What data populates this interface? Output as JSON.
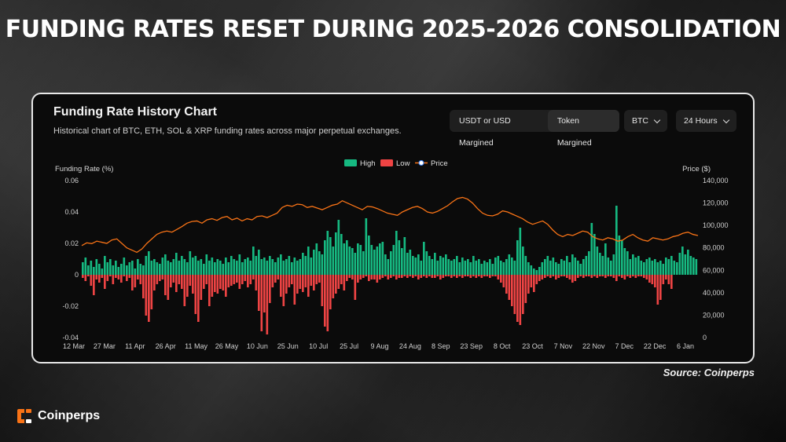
{
  "headline": "FUNDING RATES RESET DURING 2025-2026 CONSOLIDATION",
  "card": {
    "title": "Funding Rate History Chart",
    "subtitle": "Historical chart of BTC, ETH, SOL & XRP funding rates across major perpetual exchanges.",
    "segment_options": [
      "USDT or USD Margined",
      "Token Margined"
    ],
    "symbol_select": "BTC",
    "interval_select": "24 Hours"
  },
  "source": "Source: Coinperps",
  "brand": "Coinperps",
  "colors": {
    "high": "#16b981",
    "low": "#ef4444",
    "price": "#f97316",
    "accent": "#f97316"
  },
  "chart_data": {
    "type": "bar",
    "ylabel": "Funding Rate (%)",
    "y2label": "Price ($)",
    "ylim": [
      -0.04,
      0.06
    ],
    "y2lim": [
      0,
      140000
    ],
    "yticks": [
      "0.06",
      "0.04",
      "0.02",
      "0",
      "-0.02",
      "-0.04"
    ],
    "y2ticks": [
      "140,000",
      "120,000",
      "100,000",
      "80,000",
      "60,000",
      "40,000",
      "20,000",
      "0"
    ],
    "xticks": [
      "12 Mar",
      "27 Mar",
      "11 Apr",
      "26 Apr",
      "11 May",
      "26 May",
      "10 Jun",
      "25 Jun",
      "10 Jul",
      "25 Jul",
      "9 Aug",
      "24 Aug",
      "8 Sep",
      "23 Sep",
      "8 Oct",
      "23 Oct",
      "7 Nov",
      "22 Nov",
      "7 Dec",
      "22 Dec",
      "6 Jan"
    ],
    "legend": [
      "High",
      "Low",
      "Price"
    ],
    "legend_position": "top-center",
    "grid": false,
    "series": [
      {
        "name": "High",
        "values": [
          0.008,
          0.011,
          0.006,
          0.009,
          0.005,
          0.01,
          0.007,
          0.004,
          0.012,
          0.008,
          0.01,
          0.006,
          0.009,
          0.005,
          0.007,
          0.011,
          0.006,
          0.008,
          0.009,
          0.004,
          0.01,
          0.007,
          0.006,
          0.012,
          0.015,
          0.009,
          0.01,
          0.008,
          0.007,
          0.011,
          0.013,
          0.009,
          0.008,
          0.01,
          0.014,
          0.009,
          0.012,
          0.01,
          0.008,
          0.015,
          0.011,
          0.012,
          0.009,
          0.01,
          0.007,
          0.013,
          0.009,
          0.011,
          0.008,
          0.01,
          0.009,
          0.007,
          0.011,
          0.008,
          0.012,
          0.01,
          0.009,
          0.013,
          0.008,
          0.01,
          0.011,
          0.009,
          0.018,
          0.012,
          0.016,
          0.01,
          0.011,
          0.009,
          0.012,
          0.01,
          0.008,
          0.011,
          0.013,
          0.009,
          0.01,
          0.012,
          0.008,
          0.011,
          0.009,
          0.01,
          0.014,
          0.012,
          0.018,
          0.011,
          0.016,
          0.02,
          0.015,
          0.013,
          0.022,
          0.028,
          0.024,
          0.018,
          0.027,
          0.035,
          0.026,
          0.02,
          0.022,
          0.018,
          0.017,
          0.014,
          0.02,
          0.019,
          0.015,
          0.036,
          0.025,
          0.019,
          0.016,
          0.018,
          0.02,
          0.021,
          0.013,
          0.01,
          0.015,
          0.019,
          0.028,
          0.022,
          0.017,
          0.024,
          0.014,
          0.016,
          0.012,
          0.011,
          0.013,
          0.009,
          0.021,
          0.015,
          0.012,
          0.01,
          0.014,
          0.009,
          0.012,
          0.011,
          0.013,
          0.01,
          0.009,
          0.01,
          0.012,
          0.008,
          0.011,
          0.009,
          0.01,
          0.008,
          0.012,
          0.009,
          0.01,
          0.007,
          0.009,
          0.008,
          0.01,
          0.007,
          0.011,
          0.012,
          0.009,
          0.008,
          0.01,
          0.013,
          0.011,
          0.009,
          0.022,
          0.03,
          0.018,
          0.012,
          0.008,
          0.006,
          0.004,
          0.003,
          0.005,
          0.008,
          0.01,
          0.012,
          0.009,
          0.011,
          0.008,
          0.007,
          0.01,
          0.009,
          0.012,
          0.008,
          0.013,
          0.011,
          0.009,
          0.007,
          0.01,
          0.012,
          0.015,
          0.033,
          0.026,
          0.018,
          0.014,
          0.012,
          0.02,
          0.011,
          0.009,
          0.013,
          0.044,
          0.025,
          0.022,
          0.017,
          0.015,
          0.01,
          0.013,
          0.011,
          0.012,
          0.009,
          0.008,
          0.01,
          0.011,
          0.009,
          0.01,
          0.008,
          0.009,
          0.007,
          0.011,
          0.01,
          0.012,
          0.009,
          0.008,
          0.014,
          0.018,
          0.013,
          0.016,
          0.012,
          0.011,
          0.01
        ]
      },
      {
        "name": "Low",
        "values": [
          -0.002,
          -0.004,
          -0.001,
          -0.007,
          -0.013,
          -0.003,
          -0.005,
          -0.002,
          -0.009,
          -0.004,
          -0.001,
          -0.006,
          -0.002,
          -0.003,
          -0.005,
          -0.001,
          -0.004,
          -0.002,
          -0.01,
          -0.008,
          -0.003,
          -0.006,
          -0.015,
          -0.026,
          -0.03,
          -0.022,
          -0.01,
          -0.006,
          -0.004,
          -0.003,
          -0.013,
          -0.016,
          -0.008,
          -0.005,
          -0.011,
          -0.006,
          -0.009,
          -0.02,
          -0.014,
          -0.007,
          -0.012,
          -0.025,
          -0.03,
          -0.016,
          -0.009,
          -0.006,
          -0.02,
          -0.014,
          -0.011,
          -0.012,
          -0.009,
          -0.01,
          -0.014,
          -0.008,
          -0.007,
          -0.006,
          -0.005,
          -0.009,
          -0.006,
          -0.004,
          -0.008,
          -0.006,
          -0.003,
          -0.01,
          -0.023,
          -0.036,
          -0.024,
          -0.038,
          -0.018,
          -0.008,
          -0.005,
          -0.003,
          -0.014,
          -0.02,
          -0.012,
          -0.008,
          -0.006,
          -0.019,
          -0.012,
          -0.009,
          -0.011,
          -0.008,
          -0.014,
          -0.007,
          -0.01,
          -0.006,
          -0.005,
          -0.02,
          -0.033,
          -0.036,
          -0.022,
          -0.015,
          -0.012,
          -0.009,
          -0.006,
          -0.01,
          -0.004,
          -0.002,
          -0.003,
          -0.016,
          -0.005,
          -0.003,
          -0.002,
          -0.001,
          -0.004,
          -0.003,
          -0.003,
          -0.005,
          -0.003,
          -0.002,
          -0.001,
          -0.003,
          -0.002,
          -0.001,
          -0.003,
          -0.002,
          -0.002,
          -0.001,
          -0.002,
          -0.001,
          -0.002,
          -0.001,
          -0.003,
          -0.002,
          -0.001,
          -0.002,
          -0.001,
          -0.002,
          -0.002,
          -0.001,
          -0.003,
          -0.002,
          -0.001,
          -0.001,
          -0.002,
          -0.001,
          -0.002,
          -0.001,
          -0.002,
          -0.001,
          -0.001,
          -0.002,
          -0.001,
          -0.002,
          -0.001,
          -0.002,
          -0.001,
          -0.001,
          -0.002,
          -0.001,
          -0.001,
          -0.003,
          -0.005,
          -0.008,
          -0.012,
          -0.016,
          -0.02,
          -0.025,
          -0.03,
          -0.032,
          -0.025,
          -0.018,
          -0.012,
          -0.008,
          -0.011,
          -0.006,
          -0.004,
          -0.003,
          -0.002,
          -0.001,
          -0.002,
          -0.001,
          -0.003,
          -0.002,
          -0.001,
          -0.001,
          -0.002,
          -0.003,
          -0.005,
          -0.004,
          -0.002,
          -0.001,
          -0.002,
          -0.001,
          -0.001,
          -0.002,
          -0.001,
          -0.002,
          -0.001,
          -0.001,
          -0.002,
          -0.001,
          -0.001,
          -0.002,
          -0.004,
          -0.001,
          -0.002,
          -0.003,
          -0.001,
          -0.002,
          -0.001,
          -0.002,
          -0.001,
          -0.001,
          -0.002,
          -0.003,
          -0.005,
          -0.006,
          -0.008,
          -0.019,
          -0.016,
          -0.006,
          -0.003,
          -0.006,
          -0.009
        ]
      },
      {
        "name": "Price",
        "values": [
          82000,
          84500,
          83800,
          86000,
          85000,
          84000,
          87000,
          88000,
          84000,
          80000,
          78000,
          76000,
          79000,
          84000,
          88000,
          92000,
          94000,
          95000,
          94000,
          96500,
          99000,
          102000,
          103500,
          104000,
          102000,
          105000,
          106000,
          104500,
          107000,
          108000,
          105000,
          106500,
          104000,
          106000,
          105000,
          108000,
          108500,
          107000,
          109000,
          111000,
          116000,
          118000,
          117000,
          119000,
          118500,
          116000,
          117000,
          115500,
          114000,
          116000,
          118000,
          119000,
          122000,
          120000,
          118000,
          116000,
          114000,
          117000,
          116500,
          115000,
          113000,
          111000,
          110000,
          109000,
          112000,
          114000,
          116000,
          117000,
          115000,
          112000,
          111000,
          112500,
          115000,
          117500,
          121000,
          124000,
          125000,
          123500,
          120000,
          115000,
          111000,
          109000,
          108500,
          110000,
          113000,
          112000,
          110000,
          108000,
          106000,
          103000,
          101000,
          102500,
          104000,
          101000,
          96000,
          92000,
          90000,
          92000,
          91000,
          93000,
          95000,
          94000,
          90000,
          88000,
          87000,
          89000,
          88000,
          86000,
          87000,
          90000,
          92000,
          89000,
          87000,
          86000,
          89000,
          88000,
          87000,
          88000,
          90000,
          91000,
          93000,
          94000,
          92000,
          91000
        ]
      }
    ]
  }
}
